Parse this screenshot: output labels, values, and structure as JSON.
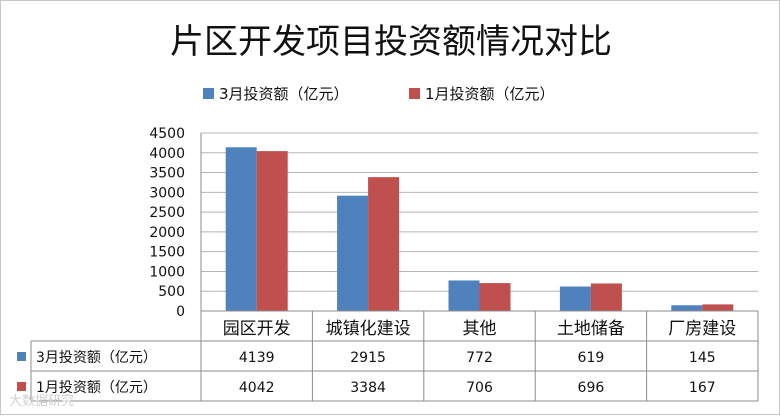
{
  "chart_data": {
    "type": "bar",
    "title": "片区开发项目投资额情况对比",
    "categories": [
      "园区开发",
      "城镇化建设",
      "其他",
      "土地储备",
      "厂房建设"
    ],
    "series": [
      {
        "name": "3月投资额（亿元）",
        "color": "#4f81bd",
        "values": [
          4139,
          2915,
          772,
          619,
          145
        ]
      },
      {
        "name": "1月投资额（亿元）",
        "color": "#c0504d",
        "values": [
          4042,
          3384,
          706,
          696,
          167
        ]
      }
    ],
    "yticks": [
      "0",
      "500",
      "1000",
      "1500",
      "2000",
      "2500",
      "3000",
      "3500",
      "4000",
      "4500"
    ],
    "ylim": [
      0,
      4500
    ],
    "grid": true,
    "legend": "top-center",
    "table": true
  },
  "watermark": "大数据研究"
}
